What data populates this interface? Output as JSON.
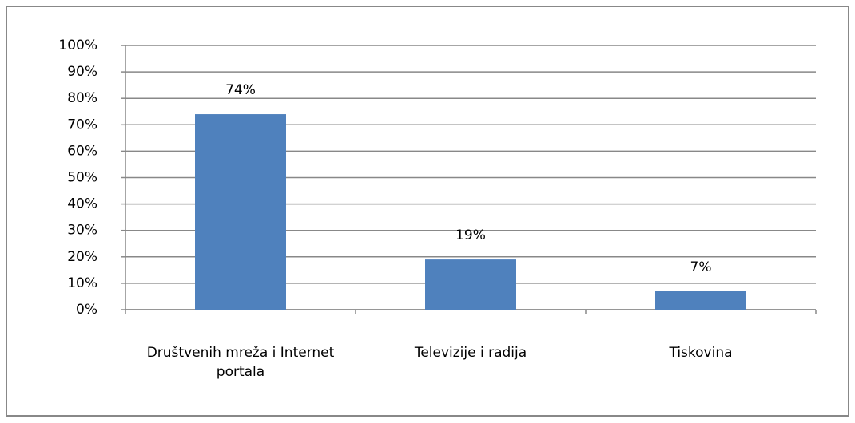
{
  "chart_data": {
    "type": "bar",
    "categories": [
      "Društvenih mreža i Internet portala",
      "Televizije i radija",
      "Tiskovina"
    ],
    "values": [
      74,
      19,
      7
    ],
    "value_labels": [
      "74%",
      "19%",
      "7%"
    ],
    "color": "#4f81bd",
    "ylim": [
      0,
      100
    ],
    "yticks": [
      {
        "value": 0,
        "label": "0%"
      },
      {
        "value": 10,
        "label": "10%"
      },
      {
        "value": 20,
        "label": "20%"
      },
      {
        "value": 30,
        "label": "30%"
      },
      {
        "value": 40,
        "label": "40%"
      },
      {
        "value": 50,
        "label": "50%"
      },
      {
        "value": 60,
        "label": "60%"
      },
      {
        "value": 70,
        "label": "70%"
      },
      {
        "value": 80,
        "label": "80%"
      },
      {
        "value": 90,
        "label": "90%"
      },
      {
        "value": 100,
        "label": "100%"
      }
    ],
    "grid": true
  }
}
